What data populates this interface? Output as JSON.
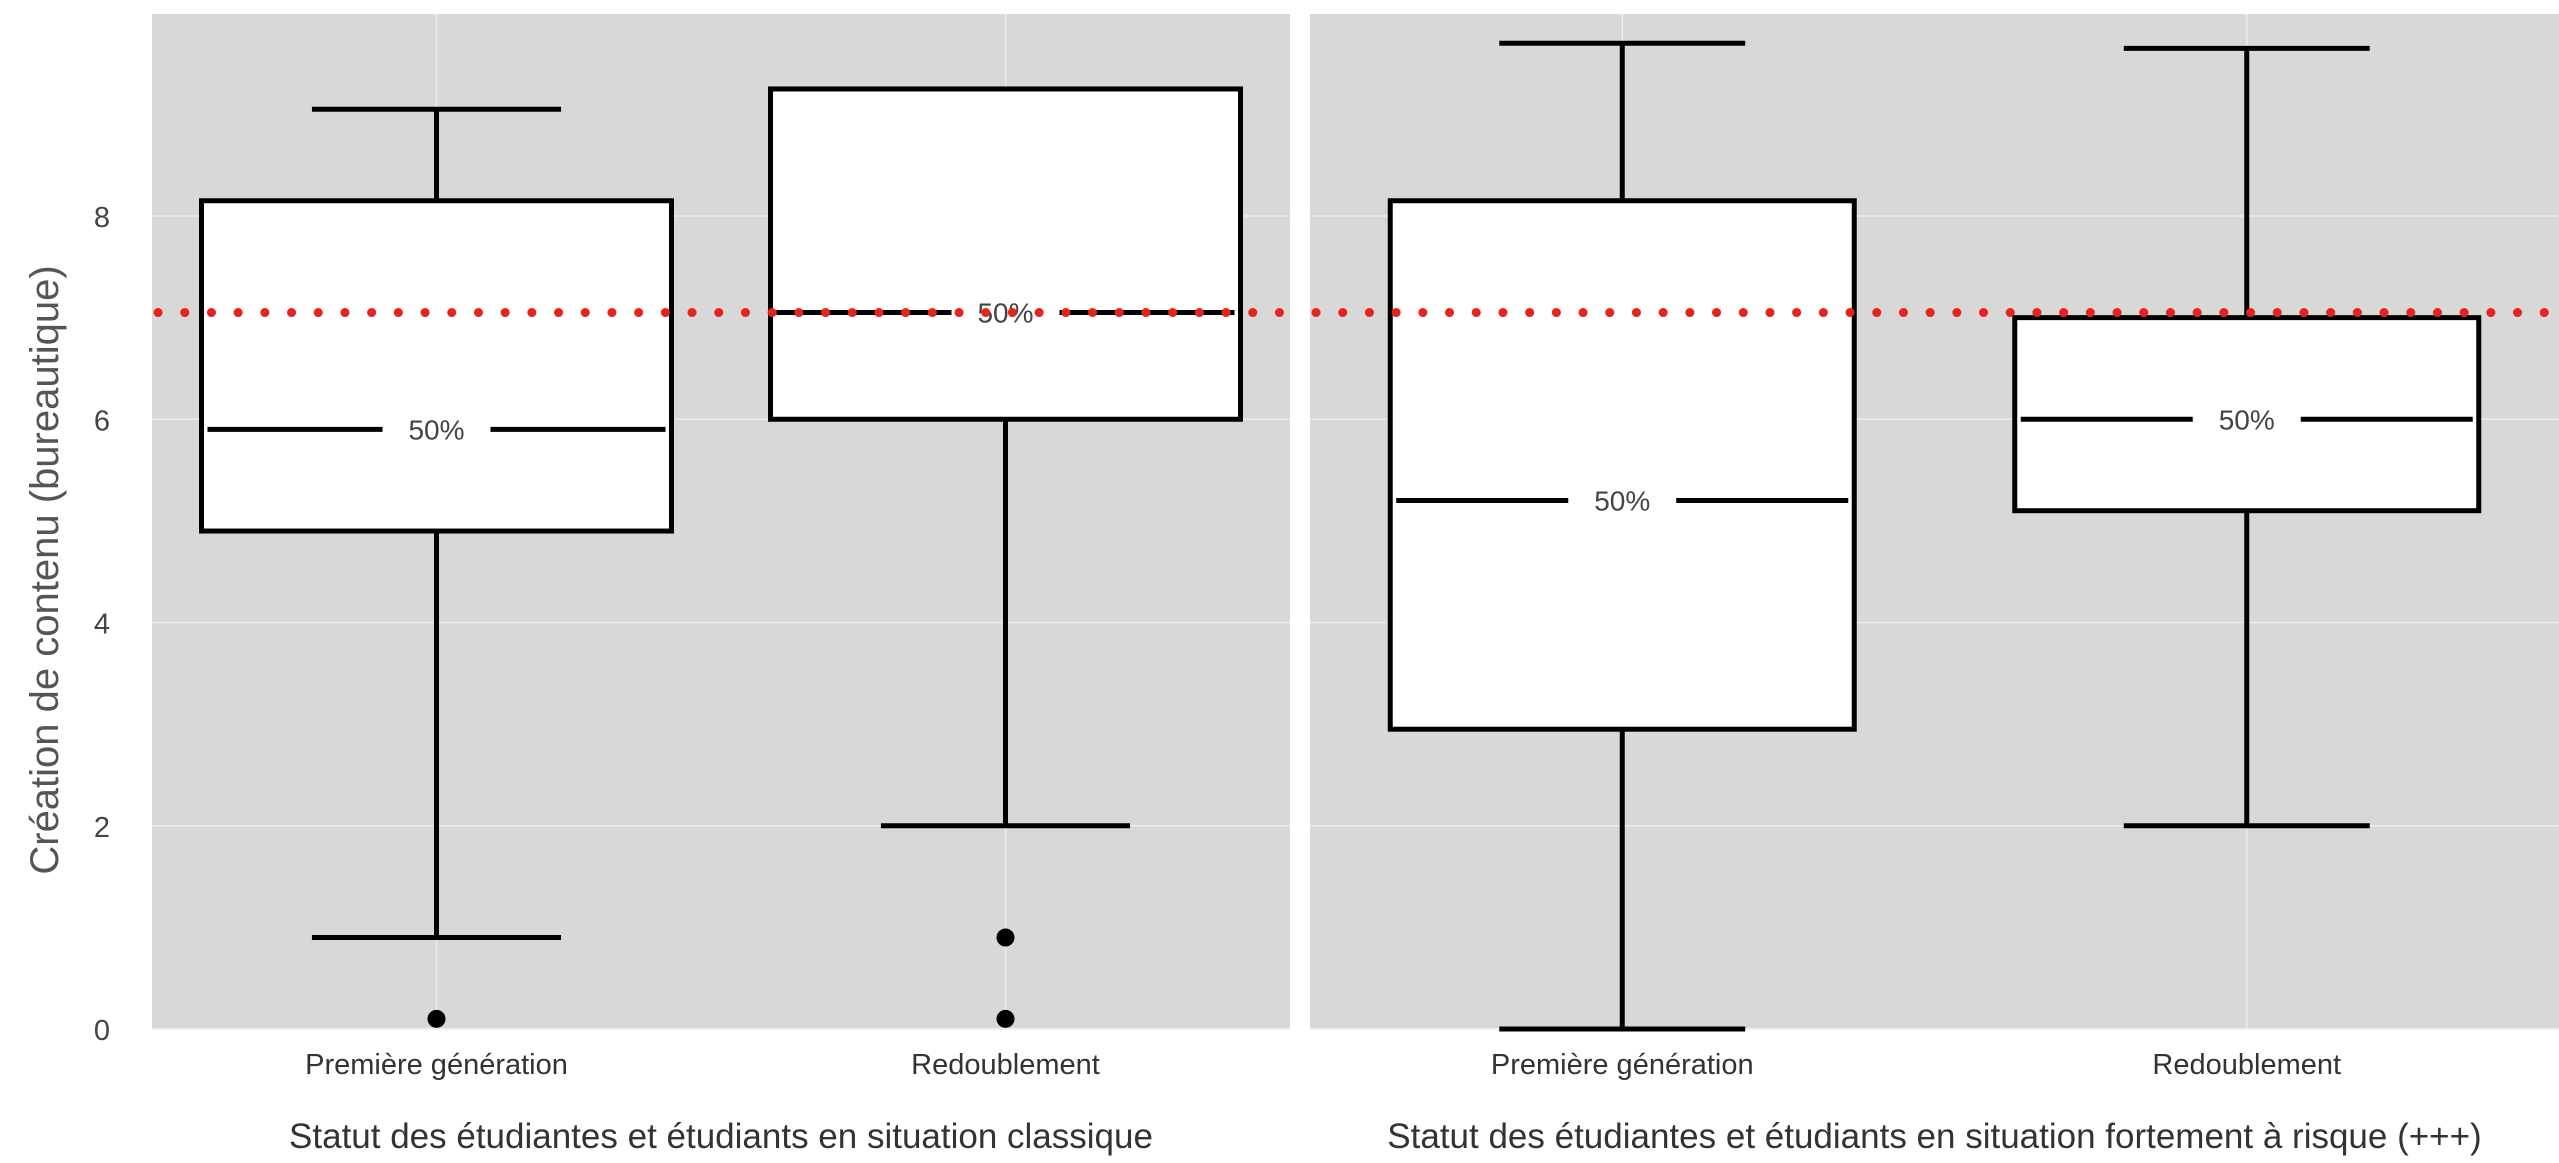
{
  "chart_data": [
    {
      "type": "box",
      "title": "",
      "xlabel": "Statut des étudiantes et étudiants en situation classique",
      "ylabel": "Création de contenu (bureautique)",
      "ylim": [
        0,
        10
      ],
      "yticks": [
        0,
        2,
        4,
        6,
        8
      ],
      "grid": true,
      "reference_line": {
        "y": 7.05,
        "style": "dotted",
        "color": "#e8231f"
      },
      "categories": [
        "Première génération",
        "Redoublement"
      ],
      "boxes": [
        {
          "category": "Première génération",
          "whisker_low": 0.9,
          "q1": 4.9,
          "median": 5.9,
          "q3": 8.15,
          "whisker_high": 9.05,
          "outliers": [
            0.1
          ],
          "median_label": "50%"
        },
        {
          "category": "Redoublement",
          "whisker_low": 2.0,
          "q1": 6.0,
          "median": 7.05,
          "q3": 9.25,
          "whisker_high": 9.25,
          "outliers": [
            0.1,
            0.9
          ],
          "median_label": "50%"
        }
      ]
    },
    {
      "type": "box",
      "title": "",
      "xlabel": "Statut des étudiantes et étudiants en situation fortement à risque (+++)",
      "ylabel": "",
      "ylim": [
        0,
        10
      ],
      "yticks": [
        0,
        2,
        4,
        6,
        8
      ],
      "grid": true,
      "reference_line": {
        "y": 7.05,
        "style": "dotted",
        "color": "#e8231f"
      },
      "categories": [
        "Première génération",
        "Redoublement"
      ],
      "boxes": [
        {
          "category": "Première génération",
          "whisker_low": 0.0,
          "q1": 2.95,
          "median": 5.2,
          "q3": 8.15,
          "whisker_high": 9.7,
          "outliers": [],
          "median_label": "50%"
        },
        {
          "category": "Redoublement",
          "whisker_low": 2.0,
          "q1": 5.1,
          "median": 6.0,
          "q3": 7.0,
          "whisker_high": 9.65,
          "outliers": [],
          "median_label": "50%"
        }
      ]
    }
  ],
  "colors": {
    "panel_bg": "#d8d8d8",
    "grid": "#ececec",
    "box_fill": "#ffffff",
    "stroke": "#000000",
    "reference": "#e8231f",
    "text": "#444444"
  }
}
